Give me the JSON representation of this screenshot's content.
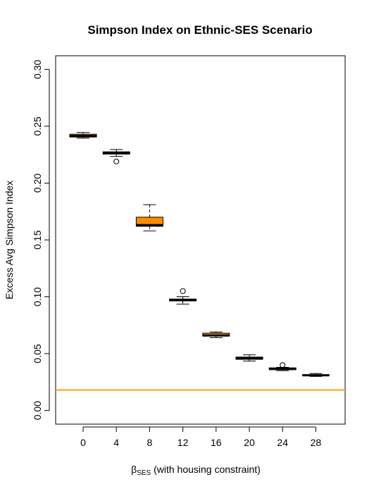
{
  "chart_data": {
    "type": "box",
    "title": "Simpson Index on Ethnic-SES Scenario",
    "xlabel": {
      "symbol": "β",
      "subscript": "SES",
      "rest": " (with housing constraint)"
    },
    "ylabel": "Excess Avg Simpson Index",
    "ylim": [
      -0.012,
      0.312
    ],
    "yticks": [
      "0.00",
      "0.05",
      "0.10",
      "0.15",
      "0.20",
      "0.25",
      "0.30"
    ],
    "categories": [
      "0",
      "4",
      "8",
      "12",
      "16",
      "20",
      "24",
      "28"
    ],
    "box_fill": "#FF8C00",
    "reference_line": {
      "value": 0.018,
      "color": "#FFA500"
    },
    "boxes": [
      {
        "category": "0",
        "min": 0.2395,
        "q1": 0.2405,
        "median": 0.2415,
        "q3": 0.243,
        "max": 0.2445,
        "outliers": []
      },
      {
        "category": "4",
        "min": 0.2235,
        "q1": 0.2255,
        "median": 0.2265,
        "q3": 0.2275,
        "max": 0.2295,
        "outliers": [
          0.219
        ]
      },
      {
        "category": "8",
        "min": 0.158,
        "q1": 0.162,
        "median": 0.163,
        "q3": 0.17,
        "max": 0.181,
        "outliers": []
      },
      {
        "category": "12",
        "min": 0.0935,
        "q1": 0.0965,
        "median": 0.097,
        "q3": 0.098,
        "max": 0.1,
        "outliers": [
          0.105
        ]
      },
      {
        "category": "16",
        "min": 0.064,
        "q1": 0.0655,
        "median": 0.066,
        "q3": 0.068,
        "max": 0.069,
        "outliers": []
      },
      {
        "category": "20",
        "min": 0.0435,
        "q1": 0.045,
        "median": 0.046,
        "q3": 0.047,
        "max": 0.049,
        "outliers": []
      },
      {
        "category": "24",
        "min": 0.035,
        "q1": 0.036,
        "median": 0.0365,
        "q3": 0.0375,
        "max": 0.038,
        "outliers": [
          0.04
        ]
      },
      {
        "category": "28",
        "min": 0.03,
        "q1": 0.031,
        "median": 0.031,
        "q3": 0.0315,
        "max": 0.0325,
        "outliers": []
      }
    ]
  }
}
